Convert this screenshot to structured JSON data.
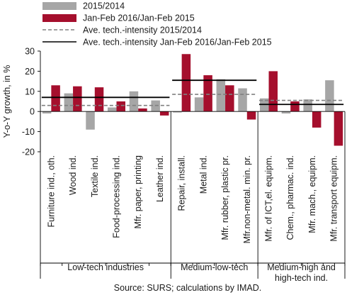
{
  "chart_data": {
    "type": "bar",
    "ylabel": "Y-o-Y growth, in %",
    "ylim": [
      -20,
      30
    ],
    "yticks": [
      -20,
      -10,
      0,
      10,
      20,
      30
    ],
    "categories": [
      "Furniture ind., oth.",
      "Wood ind.",
      "Textile ind.",
      "Food-processing ind.",
      "Mfr. paper, printing",
      "Leather ind.",
      "Repair, install.",
      "Metal ind.",
      "Mfr. rubber, plastic pr.",
      "Mfr.non-metal. min. pr.",
      "Mfr. of ICT,el. equipm.",
      "Chem., pharmac. ind.",
      "Mfr. mach., equipm.",
      "Mfr. transport equipm."
    ],
    "series": [
      {
        "name": "2015/2014",
        "color": "#a6a6a6",
        "values": [
          -1,
          9,
          -9,
          2,
          10,
          5.5,
          -0.5,
          7,
          16,
          11.5,
          6.5,
          -1,
          6,
          15.5
        ]
      },
      {
        "name": "Jan-Feb 2016/Jan-Feb 2015",
        "color": "#a50f2d",
        "values": [
          13,
          12.5,
          12,
          5,
          1.5,
          -2,
          28.5,
          18,
          13,
          -4,
          20,
          5,
          -8,
          -17
        ]
      }
    ],
    "groups": [
      {
        "label_lines": [
          "Low-tech industries"
        ],
        "start": 0,
        "end": 5,
        "ave_2015": 3,
        "ave_2016": 7
      },
      {
        "label_lines": [
          "Medium-low-tech"
        ],
        "start": 6,
        "end": 9,
        "ave_2015": 8.5,
        "ave_2016": 15.5
      },
      {
        "label_lines": [
          "Medium-high and",
          "high-tech ind."
        ],
        "start": 10,
        "end": 13,
        "ave_2015": 5.5,
        "ave_2016": 3.5
      }
    ],
    "legend": [
      {
        "label": "2015/2014",
        "kind": "bar",
        "color": "#a6a6a6"
      },
      {
        "label": "Jan-Feb 2016/Jan-Feb 2015",
        "kind": "bar",
        "color": "#a50f2d"
      },
      {
        "label": "Ave. tech.-intensity 2015/2014",
        "kind": "dashed",
        "color": "#808080"
      },
      {
        "label": "Ave. tech.-intensity Jan-Feb 2016/Jan-Feb 2015",
        "kind": "solid",
        "color": "#000000"
      }
    ],
    "legend_position": "top",
    "grid": false,
    "source": "Source: SURS; calculations by IMAD."
  }
}
